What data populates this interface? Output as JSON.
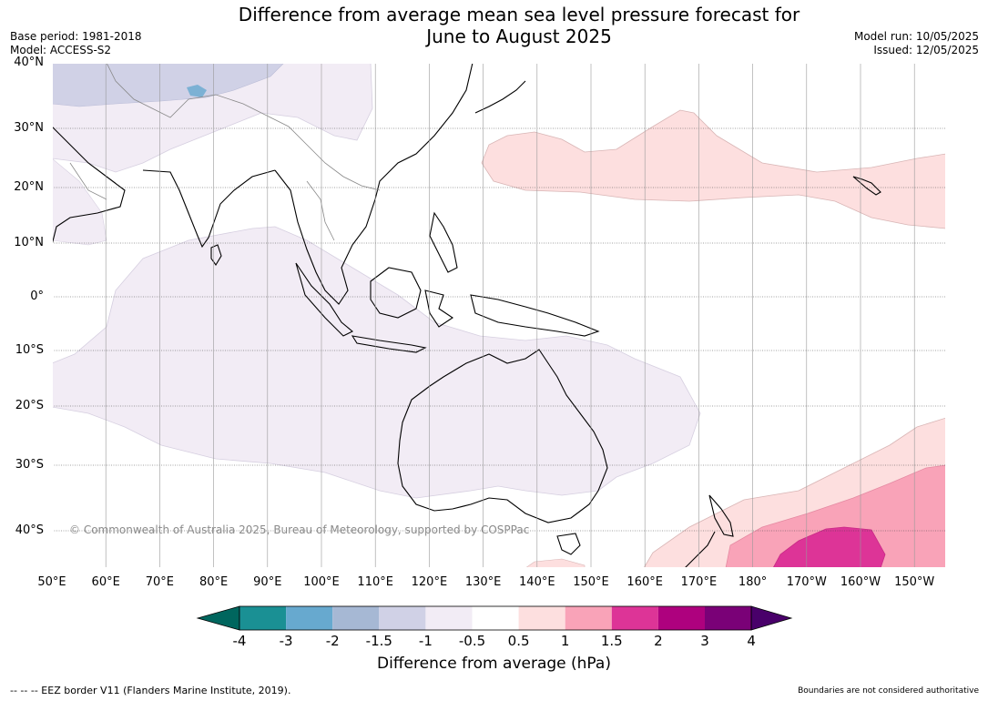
{
  "header": {
    "title_line1": "Difference from average mean sea level pressure forecast for",
    "title_line2": "June to August 2025",
    "base_period": "Base period: 1981-2018",
    "model": "Model: ACCESS-S2",
    "model_run": "Model run: 10/05/2025",
    "issued": "Issued: 12/05/2025"
  },
  "map": {
    "lat_labels": [
      "40°N",
      "30°N",
      "20°N",
      "10°N",
      "0°",
      "10°S",
      "20°S",
      "30°S",
      "40°S"
    ],
    "lon_labels": [
      "50°E",
      "60°E",
      "70°E",
      "80°E",
      "90°E",
      "100°E",
      "110°E",
      "120°E",
      "130°E",
      "140°E",
      "150°E",
      "160°E",
      "170°E",
      "180°",
      "170°W",
      "160°W",
      "150°W"
    ],
    "copyright": "© Commonwealth of Australia 2025, Bureau of Meteorology, supported by COSPPac",
    "colors": {
      "land_outline": "#000000",
      "border_gray": "#888888",
      "grid": "#999999"
    }
  },
  "legend": {
    "tick_labels": [
      "-4",
      "-3",
      "-2",
      "-1.5",
      "-1",
      "-0.5",
      "0.5",
      "1",
      "1.5",
      "2",
      "3",
      "4"
    ],
    "colors": [
      "#1a9094",
      "#67a9cf",
      "#a6b8d4",
      "#d0d1e6",
      "#f2ecf5",
      "#ffffff",
      "#fddfdf",
      "#f9a3b8",
      "#dd3497",
      "#ae017e",
      "#7a0177"
    ],
    "under_color": "#00665e",
    "over_color": "#49006a",
    "label": "Difference from average (hPa)"
  },
  "footer": {
    "eez": "-- -- -- EEZ border V11 (Flanders Marine Institute, 2019).",
    "boundaries": "Boundaries are not considered authoritative"
  }
}
